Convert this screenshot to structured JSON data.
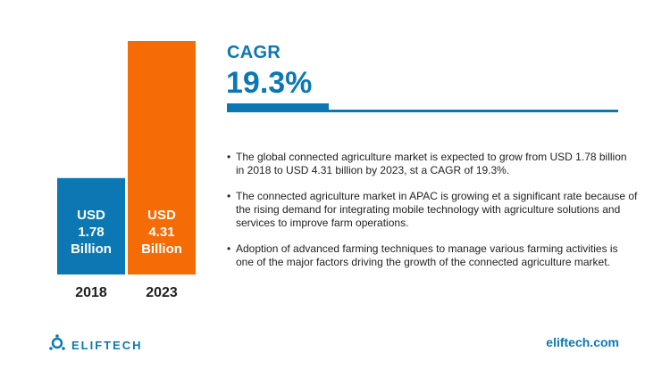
{
  "chart_data": {
    "type": "bar",
    "categories": [
      "2018",
      "2023"
    ],
    "values": [
      1.78,
      4.31
    ],
    "bar_labels": [
      [
        "USD",
        "1.78",
        "Billion"
      ],
      [
        "USD",
        "4.31",
        "Billion"
      ]
    ],
    "colors": [
      "#0b78b4",
      "#f56b05"
    ]
  },
  "cagr": {
    "label": "CAGR",
    "value": "19.3%",
    "bar_fraction": 0.26
  },
  "bullets": [
    "The global connected agriculture market is expected to grow from USD 1.78 billion in 2018 to USD 4.31 billion by 2023, st a CAGR of 19.3%.",
    "The connected agriculture market in APAC is growing et a significant rate because of the rising demand for integrating mobile technology with agriculture solutions and services to improve farm operations.",
    "Adoption of advanced farming techniques to manage various farming activities is one of the major factors driving the growth of the connected agriculture market."
  ],
  "footer": {
    "logo_text": "ELIFTECH",
    "website": "eliftech.com"
  },
  "theme": {
    "accent": "#0b78b4",
    "orange": "#f56b05"
  }
}
